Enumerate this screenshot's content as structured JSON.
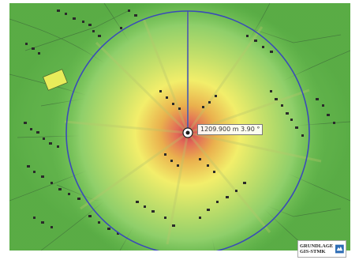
{
  "map": {
    "measurement_label": "1209.900 m 3.90 °",
    "attribution": {
      "line1": "GRUNDLAGE",
      "line2": "GIS-STMK",
      "logo_icon": "gis-stmk-logo-icon"
    },
    "colors": {
      "base_green": "#5fb24a",
      "light_green": "#8fcf6a",
      "yellow": "#f2ee6a",
      "orange": "#e7a64c",
      "red_center": "#d8554e",
      "circle": "#3a4bb8",
      "buildings": "#2a2a2a"
    }
  }
}
